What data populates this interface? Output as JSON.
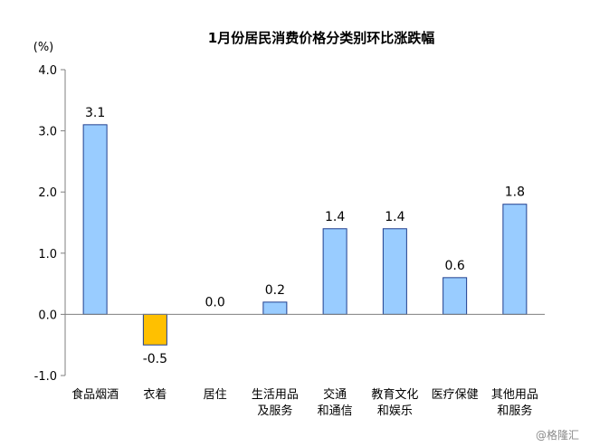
{
  "watermark": "@格隆汇",
  "colors": {
    "positive_bar": "#99CCFF",
    "negative_bar": "#FFC000",
    "bar_border": "#1F3F8F",
    "axis": "#7F7F7F"
  },
  "chart_data": {
    "type": "bar",
    "title": "1月份居民消费价格分类别环比涨跌幅",
    "ylabel": "(%)",
    "xlabel": "",
    "ylim": [
      -1.0,
      4.0
    ],
    "yticks": [
      "4.0",
      "3.0",
      "2.0",
      "1.0",
      "0.0",
      "-1.0"
    ],
    "grid": false,
    "legend": "none",
    "categories": [
      [
        "食品烟酒"
      ],
      [
        "衣着"
      ],
      [
        "居住"
      ],
      [
        "生活用品",
        "及服务"
      ],
      [
        "交通",
        "和通信"
      ],
      [
        "教育文化",
        "和娱乐"
      ],
      [
        "医疗保健"
      ],
      [
        "其他用品",
        "和服务"
      ]
    ],
    "values": [
      3.1,
      -0.5,
      0.0,
      0.2,
      1.4,
      1.4,
      0.6,
      1.8
    ],
    "data_labels": [
      "3.1",
      "-0.5",
      "0.0",
      "0.2",
      "1.4",
      "1.4",
      "0.6",
      "1.8"
    ]
  }
}
